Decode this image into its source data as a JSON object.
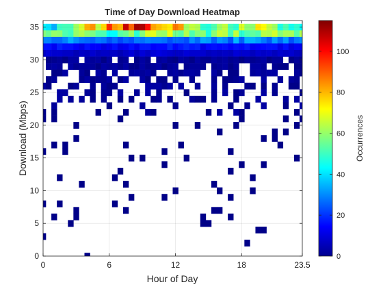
{
  "chart_data": {
    "type": "heatmap",
    "title": "Time of Day Download Heatmap",
    "xlabel": "Hour of Day",
    "ylabel": "Download (Mbps)",
    "colorbar_label": "Occurrences",
    "xlim": [
      0,
      23.5
    ],
    "ylim": [
      0,
      36
    ],
    "x_ticks": [
      0,
      6,
      12,
      18,
      23.5
    ],
    "x_tick_labels": [
      "0",
      "6",
      "12",
      "18",
      "23.5"
    ],
    "y_ticks": [
      0,
      5,
      10,
      15,
      20,
      25,
      30,
      35
    ],
    "y_tick_labels": [
      "0",
      "5",
      "10",
      "15",
      "20",
      "25",
      "30",
      "35"
    ],
    "color_range": [
      0,
      115
    ],
    "colorbar_ticks": [
      0,
      20,
      40,
      60,
      80,
      100
    ],
    "colorbar_tick_labels": [
      "0",
      "20",
      "40",
      "60",
      "80",
      "100"
    ],
    "colormap": "jet",
    "grid": true,
    "bin_width_x": 0.5,
    "bin_width_y": 1,
    "band_samples": [
      {
        "hour": 0,
        "y35": 40,
        "y34": 55,
        "y33": 28,
        "y32": 14,
        "y31": 8
      },
      {
        "hour": 2,
        "y35": 45,
        "y34": 58,
        "y33": 30,
        "y32": 15,
        "y31": 8
      },
      {
        "hour": 4,
        "y35": 70,
        "y34": 52,
        "y33": 26,
        "y32": 14,
        "y31": 8
      },
      {
        "hour": 6,
        "y35": 85,
        "y34": 50,
        "y33": 24,
        "y32": 14,
        "y31": 7
      },
      {
        "hour": 8,
        "y35": 100,
        "y34": 55,
        "y33": 25,
        "y32": 15,
        "y31": 8
      },
      {
        "hour": 10,
        "y35": 90,
        "y34": 60,
        "y33": 28,
        "y32": 16,
        "y31": 9
      },
      {
        "hour": 12,
        "y35": 75,
        "y34": 58,
        "y33": 28,
        "y32": 16,
        "y31": 9
      },
      {
        "hour": 14,
        "y35": 60,
        "y34": 55,
        "y33": 27,
        "y32": 15,
        "y31": 8
      },
      {
        "hour": 16,
        "y35": 55,
        "y34": 56,
        "y33": 28,
        "y32": 15,
        "y31": 8
      },
      {
        "hour": 18,
        "y35": 60,
        "y34": 58,
        "y33": 30,
        "y32": 16,
        "y31": 9
      },
      {
        "hour": 20,
        "y35": 65,
        "y34": 57,
        "y33": 29,
        "y32": 15,
        "y31": 8
      },
      {
        "hour": 22,
        "y35": 50,
        "y34": 56,
        "y33": 28,
        "y32": 14,
        "y31": 8
      },
      {
        "hour": 23.5,
        "y35": 38,
        "y34": 54,
        "y33": 26,
        "y32": 13,
        "y31": 7
      }
    ],
    "isolated_cells": [
      [
        0,
        3
      ],
      [
        0,
        8
      ],
      [
        0,
        16
      ],
      [
        0,
        21
      ],
      [
        0,
        22
      ],
      [
        1,
        6
      ],
      [
        1,
        17
      ],
      [
        1,
        21
      ],
      [
        1,
        22
      ],
      [
        2,
        17
      ],
      [
        1.5,
        8
      ],
      [
        2.5,
        5
      ],
      [
        1.5,
        12
      ],
      [
        2,
        16
      ],
      [
        3,
        20
      ],
      [
        3,
        6
      ],
      [
        3,
        18
      ],
      [
        3,
        7
      ],
      [
        3.5,
        11
      ],
      [
        4,
        0
      ],
      [
        4.5,
        24
      ],
      [
        5,
        22
      ],
      [
        5.5,
        24
      ],
      [
        6,
        23
      ],
      [
        6,
        26
      ],
      [
        7,
        21
      ],
      [
        7,
        24
      ],
      [
        7.5,
        17
      ],
      [
        7,
        13
      ],
      [
        6.5,
        12
      ],
      [
        6.5,
        8
      ],
      [
        7.5,
        22
      ],
      [
        7.5,
        11
      ],
      [
        7.5,
        7
      ],
      [
        8,
        9
      ],
      [
        8,
        15
      ],
      [
        9,
        15
      ],
      [
        10,
        22
      ],
      [
        10,
        24
      ],
      [
        11,
        9
      ],
      [
        11,
        16
      ],
      [
        11,
        14
      ],
      [
        11.5,
        24
      ],
      [
        12,
        10
      ],
      [
        12,
        20
      ],
      [
        12.5,
        17
      ],
      [
        13,
        15
      ],
      [
        14,
        20
      ],
      [
        14,
        24
      ],
      [
        14.5,
        5
      ],
      [
        14.5,
        6
      ],
      [
        15,
        5
      ],
      [
        15,
        22
      ],
      [
        15.5,
        7
      ],
      [
        15.5,
        11
      ],
      [
        16,
        19
      ],
      [
        16,
        7
      ],
      [
        16,
        10
      ],
      [
        17,
        9
      ],
      [
        17,
        6
      ],
      [
        17,
        13
      ],
      [
        17,
        16
      ],
      [
        17.5,
        20
      ],
      [
        18,
        21
      ],
      [
        18,
        14
      ],
      [
        18.5,
        23
      ],
      [
        18.5,
        2
      ],
      [
        19,
        12
      ],
      [
        19,
        10
      ],
      [
        19.5,
        4
      ],
      [
        20,
        18
      ],
      [
        20,
        14
      ],
      [
        20,
        4
      ],
      [
        21,
        19
      ],
      [
        21,
        18
      ],
      [
        21.5,
        17
      ],
      [
        22,
        23
      ],
      [
        22,
        21
      ],
      [
        22,
        19
      ],
      [
        23,
        15
      ],
      [
        23,
        20
      ],
      [
        23,
        22
      ],
      [
        23,
        24
      ],
      [
        23.5,
        21
      ],
      [
        22.5,
        26
      ]
    ]
  }
}
